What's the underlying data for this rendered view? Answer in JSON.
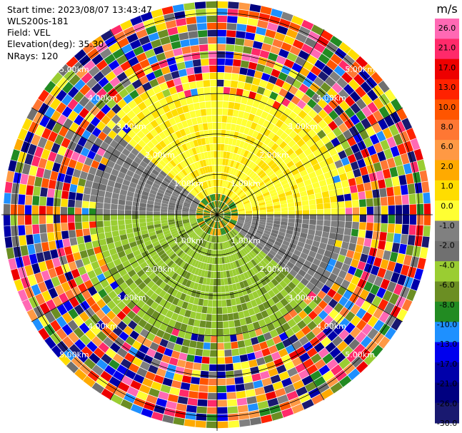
{
  "header": {
    "start_time": "Start time: 2023/08/07 13:43:47",
    "instrument": "WLS200s-181",
    "field": "Field: VEL",
    "elevation": "Elevation(deg): 35.30",
    "nrays": "NRays: 120"
  },
  "chart_data": {
    "type": "heatmap",
    "projection": "polar-ppi",
    "n_rays": 120,
    "n_gates": 30,
    "range_rings_km": [
      1.0,
      2.0,
      3.0,
      4.0,
      5.0
    ],
    "ring_labels": [
      "1.00km",
      "2.00km",
      "3.00km",
      "4.00km",
      "5.00km"
    ],
    "max_range_km": 5.3,
    "colorbar": {
      "unit": "m/s",
      "ticks": [
        26.0,
        21.0,
        17.0,
        13.0,
        10.0,
        8.0,
        6.0,
        2.0,
        1.0,
        0.0,
        -1.0,
        -2.0,
        -4.0,
        -6.0,
        -8.0,
        -10.0,
        -13.0,
        -17.0,
        -21.0,
        -26.0,
        -30.0
      ],
      "tick_labels": [
        "26.0",
        "21.0",
        "17.0",
        "13.0",
        "10.0",
        "8.0",
        "6.0",
        "2.0",
        "1.0",
        "0.0",
        "-1.0",
        "-2.0",
        "-4.0",
        "-6.0",
        "-8.0",
        "-10.0",
        "-13.0",
        "-17.0",
        "-21.0",
        "-26.0",
        "-30.0"
      ],
      "colors": [
        "#ff69b4",
        "#ff2a6a",
        "#ee0000",
        "#ff2200",
        "#ff5500",
        "#ff7733",
        "#ff9944",
        "#ffaa00",
        "#ffdd00",
        "#ffff33",
        "#808080",
        "#707070",
        "#9acd32",
        "#6b8e23",
        "#228b22",
        "#1e90ff",
        "#0000ee",
        "#0000aa",
        "#000080",
        "#191970"
      ]
    },
    "grid": true
  }
}
